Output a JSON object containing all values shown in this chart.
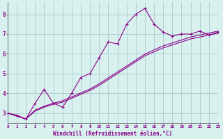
{
  "title": "",
  "xlabel": "Windchill (Refroidissement éolien,°C)",
  "background_color": "#d8f0ee",
  "grid_color": "#aacccc",
  "line_color": "#880088",
  "xlim": [
    0,
    23
  ],
  "ylim": [
    2.5,
    8.6
  ],
  "yticks": [
    3,
    4,
    5,
    6,
    7,
    8
  ],
  "xticks": [
    0,
    1,
    2,
    3,
    4,
    5,
    6,
    7,
    8,
    9,
    10,
    11,
    12,
    13,
    14,
    15,
    16,
    17,
    18,
    19,
    20,
    21,
    22,
    23
  ],
  "series1_x": [
    0,
    1,
    2,
    3,
    4,
    5,
    6,
    7,
    8,
    9,
    10,
    11,
    12,
    13,
    14,
    15,
    16,
    17,
    18,
    19,
    20,
    21,
    22,
    23
  ],
  "series1_y": [
    3.0,
    2.9,
    2.7,
    3.5,
    4.2,
    3.5,
    3.3,
    4.0,
    4.8,
    5.0,
    5.8,
    6.6,
    6.5,
    7.5,
    8.0,
    8.3,
    7.5,
    7.1,
    6.9,
    7.0,
    7.0,
    7.15,
    6.95,
    7.1
  ],
  "series2_x": [
    0,
    2,
    3,
    4,
    5,
    6,
    7,
    8,
    9,
    10,
    11,
    12,
    13,
    14,
    15,
    16,
    17,
    18,
    19,
    20,
    21,
    22,
    23
  ],
  "series2_y": [
    3.0,
    2.7,
    3.1,
    3.3,
    3.45,
    3.55,
    3.75,
    3.95,
    4.15,
    4.4,
    4.7,
    5.0,
    5.3,
    5.6,
    5.9,
    6.1,
    6.3,
    6.45,
    6.6,
    6.75,
    6.85,
    6.95,
    7.05
  ],
  "series3_x": [
    0,
    2,
    3,
    4,
    5,
    6,
    7,
    8,
    9,
    10,
    11,
    12,
    13,
    14,
    15,
    16,
    17,
    18,
    19,
    20,
    21,
    22,
    23
  ],
  "series3_y": [
    3.0,
    2.7,
    3.15,
    3.35,
    3.5,
    3.62,
    3.82,
    4.02,
    4.22,
    4.48,
    4.78,
    5.08,
    5.38,
    5.68,
    5.98,
    6.2,
    6.4,
    6.55,
    6.7,
    6.85,
    6.95,
    7.05,
    7.15
  ]
}
